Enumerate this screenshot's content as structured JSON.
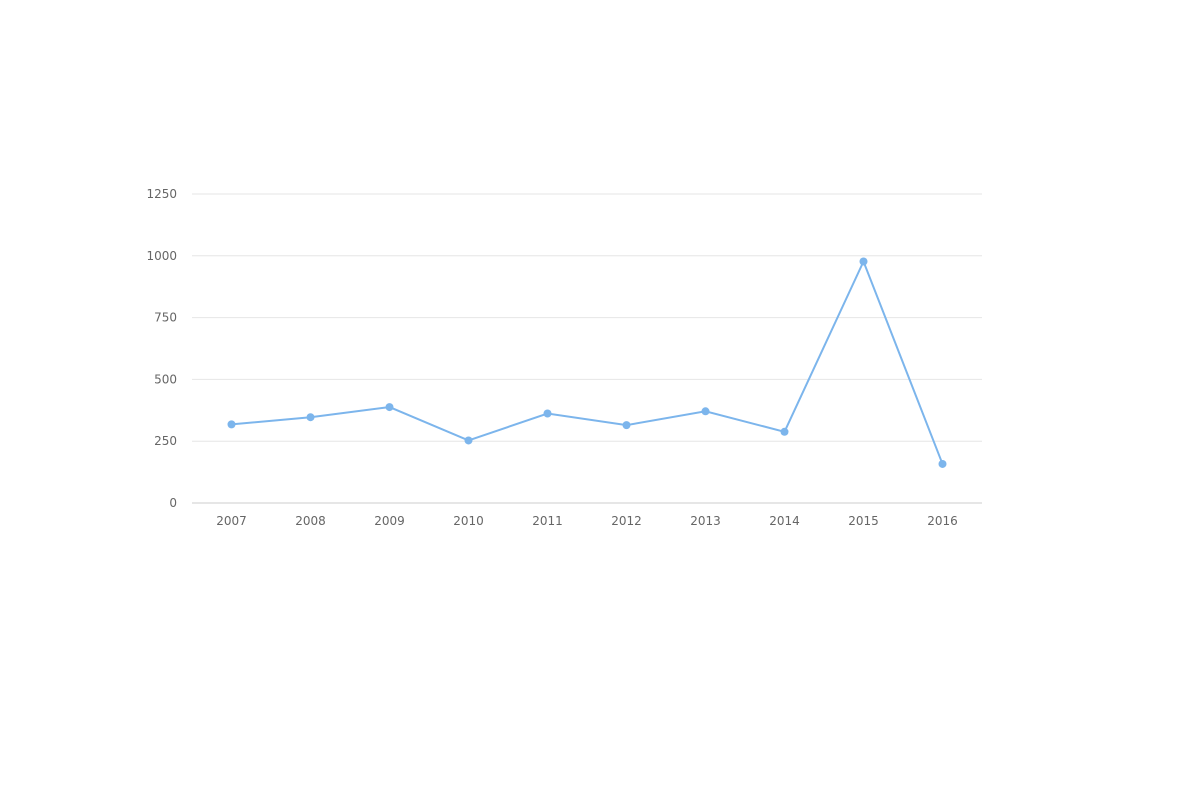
{
  "chart_data": {
    "type": "line",
    "categories": [
      "2007",
      "2008",
      "2009",
      "2010",
      "2011",
      "2012",
      "2013",
      "2014",
      "2015",
      "2016"
    ],
    "series": [
      {
        "values": [
          318,
          347,
          388,
          253,
          362,
          315,
          371,
          288,
          977,
          158
        ],
        "color": "#7cb5ec"
      }
    ],
    "ylim": [
      0,
      1250
    ],
    "yticks": [
      "0",
      "250",
      "500",
      "750",
      "1000",
      "1250"
    ],
    "grid": true,
    "legend": "none"
  }
}
